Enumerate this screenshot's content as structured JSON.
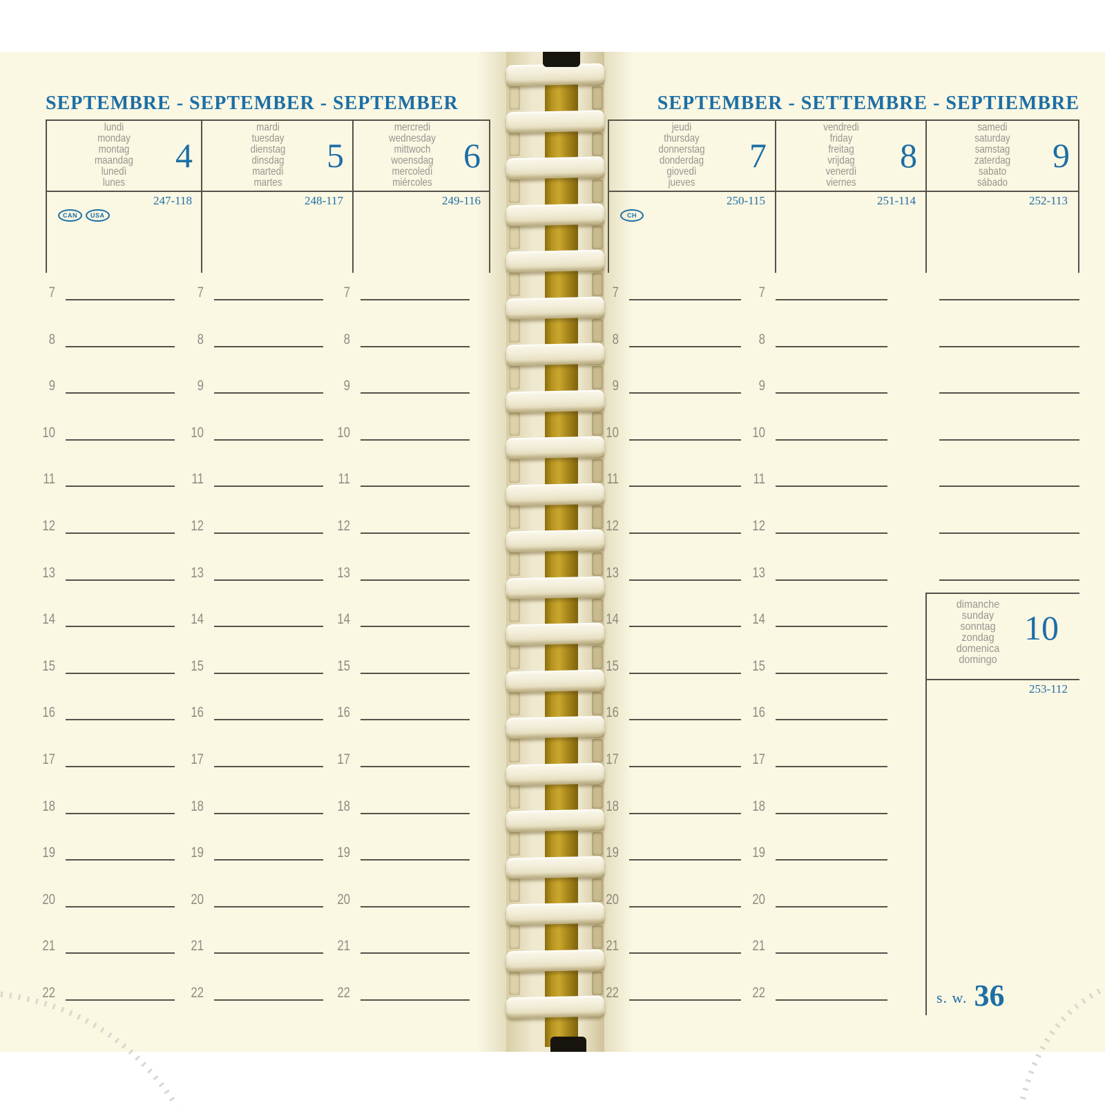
{
  "left_page": {
    "month_title": "SEPTEMBRE - SEPTEMBER - SEPTEMBER",
    "days": [
      {
        "names": [
          "lundi",
          "monday",
          "montag",
          "maandag",
          "lunedì",
          "lunes"
        ],
        "date": "4",
        "day_counter": "247-118",
        "badges": [
          "CAN",
          "USA"
        ]
      },
      {
        "names": [
          "mardi",
          "tuesday",
          "dienstag",
          "dinsdag",
          "martedì",
          "martes"
        ],
        "date": "5",
        "day_counter": "248-117",
        "badges": []
      },
      {
        "names": [
          "mercredi",
          "wednesday",
          "mittwoch",
          "woensdag",
          "mercoledì",
          "miércoles"
        ],
        "date": "6",
        "day_counter": "249-116",
        "badges": []
      }
    ]
  },
  "right_page": {
    "month_title": "SEPTEMBER - SETTEMBRE - SEPTIEMBRE",
    "days": [
      {
        "names": [
          "jeudi",
          "thursday",
          "donnerstag",
          "donderdag",
          "giovedì",
          "jueves"
        ],
        "date": "7",
        "day_counter": "250-115",
        "badges": [
          "CH"
        ]
      },
      {
        "names": [
          "vendredi",
          "friday",
          "freitag",
          "vrijdag",
          "venerdì",
          "viernes"
        ],
        "date": "8",
        "day_counter": "251-114",
        "badges": []
      },
      {
        "names": [
          "samedi",
          "saturday",
          "samstag",
          "zaterdag",
          "sabato",
          "sábado"
        ],
        "date": "9",
        "day_counter": "252-113",
        "badges": []
      }
    ],
    "sunday": {
      "names": [
        "dimanche",
        "sunday",
        "sonntag",
        "zondag",
        "domenica",
        "domingo"
      ],
      "date": "10",
      "day_counter": "253-112"
    },
    "week_label": "s. w.",
    "week_number": "36"
  },
  "hours": [
    "7",
    "8",
    "9",
    "10",
    "11",
    "12",
    "13",
    "14",
    "15",
    "16",
    "17",
    "18",
    "19",
    "20",
    "21",
    "22"
  ],
  "saturday_hours_shown": 7,
  "colors": {
    "ink_blue": "#1d6ea5",
    "day_name_gray": "#97968e",
    "rule_line": "#54534b",
    "paper_cream": "#faf7e3",
    "spiral_yellow": "#a8871a",
    "spiral_ring_cream": "#f2edd8"
  }
}
